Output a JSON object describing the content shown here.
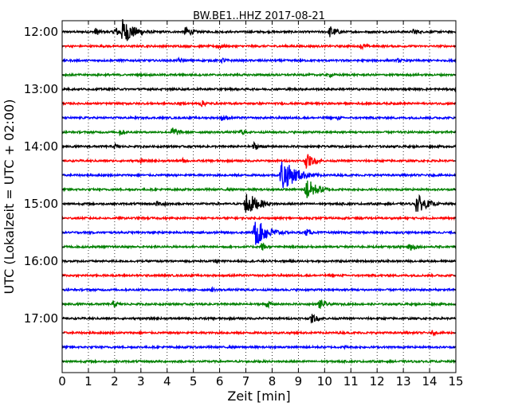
{
  "chart_data": {
    "type": "line",
    "title": "BW.BE1..HHZ 2017-08-21",
    "xlabel": "Zeit  [min]",
    "ylabel": "UTC (Lokalzeit = UTC + 02:00)",
    "xlim": [
      0,
      15
    ],
    "x_ticks": [
      "0",
      "1",
      "2",
      "3",
      "4",
      "5",
      "6",
      "7",
      "8",
      "9",
      "10",
      "11",
      "12",
      "13",
      "14",
      "15"
    ],
    "y_ticks": [
      "12:00",
      "13:00",
      "14:00",
      "15:00",
      "16:00",
      "17:00"
    ],
    "grid": "dotted vertical",
    "trace_interval_minutes": 15,
    "colors": [
      "#000000",
      "#ff0000",
      "#0000ff",
      "#008000"
    ],
    "traces": [
      {
        "start": "12:00",
        "events": [
          [
            1.25,
            0.35
          ],
          [
            2.0,
            0.45
          ],
          [
            2.3,
            1.0
          ],
          [
            4.7,
            0.45
          ],
          [
            10.2,
            0.5
          ],
          [
            13.4,
            0.3
          ]
        ]
      },
      {
        "start": "12:15",
        "events": [
          [
            5.9,
            0.3
          ],
          [
            11.4,
            0.3
          ]
        ]
      },
      {
        "start": "12:30",
        "events": [
          [
            4.45,
            0.25
          ],
          [
            6.1,
            0.25
          ],
          [
            12.8,
            0.2
          ]
        ]
      },
      {
        "start": "12:45",
        "events": [
          [
            10.2,
            0.2
          ]
        ]
      },
      {
        "start": "13:00",
        "events": [
          [
            15.0,
            0.3
          ]
        ]
      },
      {
        "start": "13:15",
        "events": [
          [
            5.3,
            0.3
          ]
        ]
      },
      {
        "start": "13:30",
        "events": [
          [
            6.1,
            0.3
          ],
          [
            10.5,
            0.2
          ]
        ]
      },
      {
        "start": "13:45",
        "events": [
          [
            2.2,
            0.3
          ],
          [
            4.2,
            0.45
          ],
          [
            6.8,
            0.3
          ]
        ]
      },
      {
        "start": "14:00",
        "events": [
          [
            2.0,
            0.25
          ],
          [
            7.3,
            0.35
          ]
        ]
      },
      {
        "start": "14:15",
        "events": [
          [
            3.0,
            0.2
          ],
          [
            4.6,
            0.2
          ],
          [
            9.3,
            0.6
          ]
        ]
      },
      {
        "start": "14:30",
        "events": [
          [
            8.35,
            1.3
          ]
        ]
      },
      {
        "start": "14:45",
        "events": [
          [
            9.3,
            0.9
          ]
        ]
      },
      {
        "start": "15:00",
        "events": [
          [
            3.6,
            0.25
          ],
          [
            3.9,
            0.25
          ],
          [
            7.0,
            1.0
          ],
          [
            13.5,
            0.8
          ]
        ]
      },
      {
        "start": "15:15",
        "events": []
      },
      {
        "start": "15:30",
        "events": [
          [
            7.35,
            1.1
          ],
          [
            9.3,
            0.3
          ]
        ]
      },
      {
        "start": "15:45",
        "events": [
          [
            7.6,
            0.35
          ],
          [
            13.2,
            0.45
          ]
        ]
      },
      {
        "start": "16:00",
        "events": [
          [
            5.8,
            0.2
          ]
        ]
      },
      {
        "start": "16:15",
        "events": []
      },
      {
        "start": "16:30",
        "events": [
          [
            5.7,
            0.2
          ]
        ]
      },
      {
        "start": "16:45",
        "events": [
          [
            1.95,
            0.3
          ],
          [
            7.8,
            0.3
          ],
          [
            9.8,
            0.45
          ]
        ]
      },
      {
        "start": "17:00",
        "events": [
          [
            9.5,
            0.4
          ]
        ]
      },
      {
        "start": "17:15",
        "events": [
          [
            14.1,
            0.2
          ]
        ]
      },
      {
        "start": "17:30",
        "events": [
          [
            10.8,
            0.15
          ]
        ]
      },
      {
        "start": "17:45",
        "events": []
      }
    ]
  }
}
